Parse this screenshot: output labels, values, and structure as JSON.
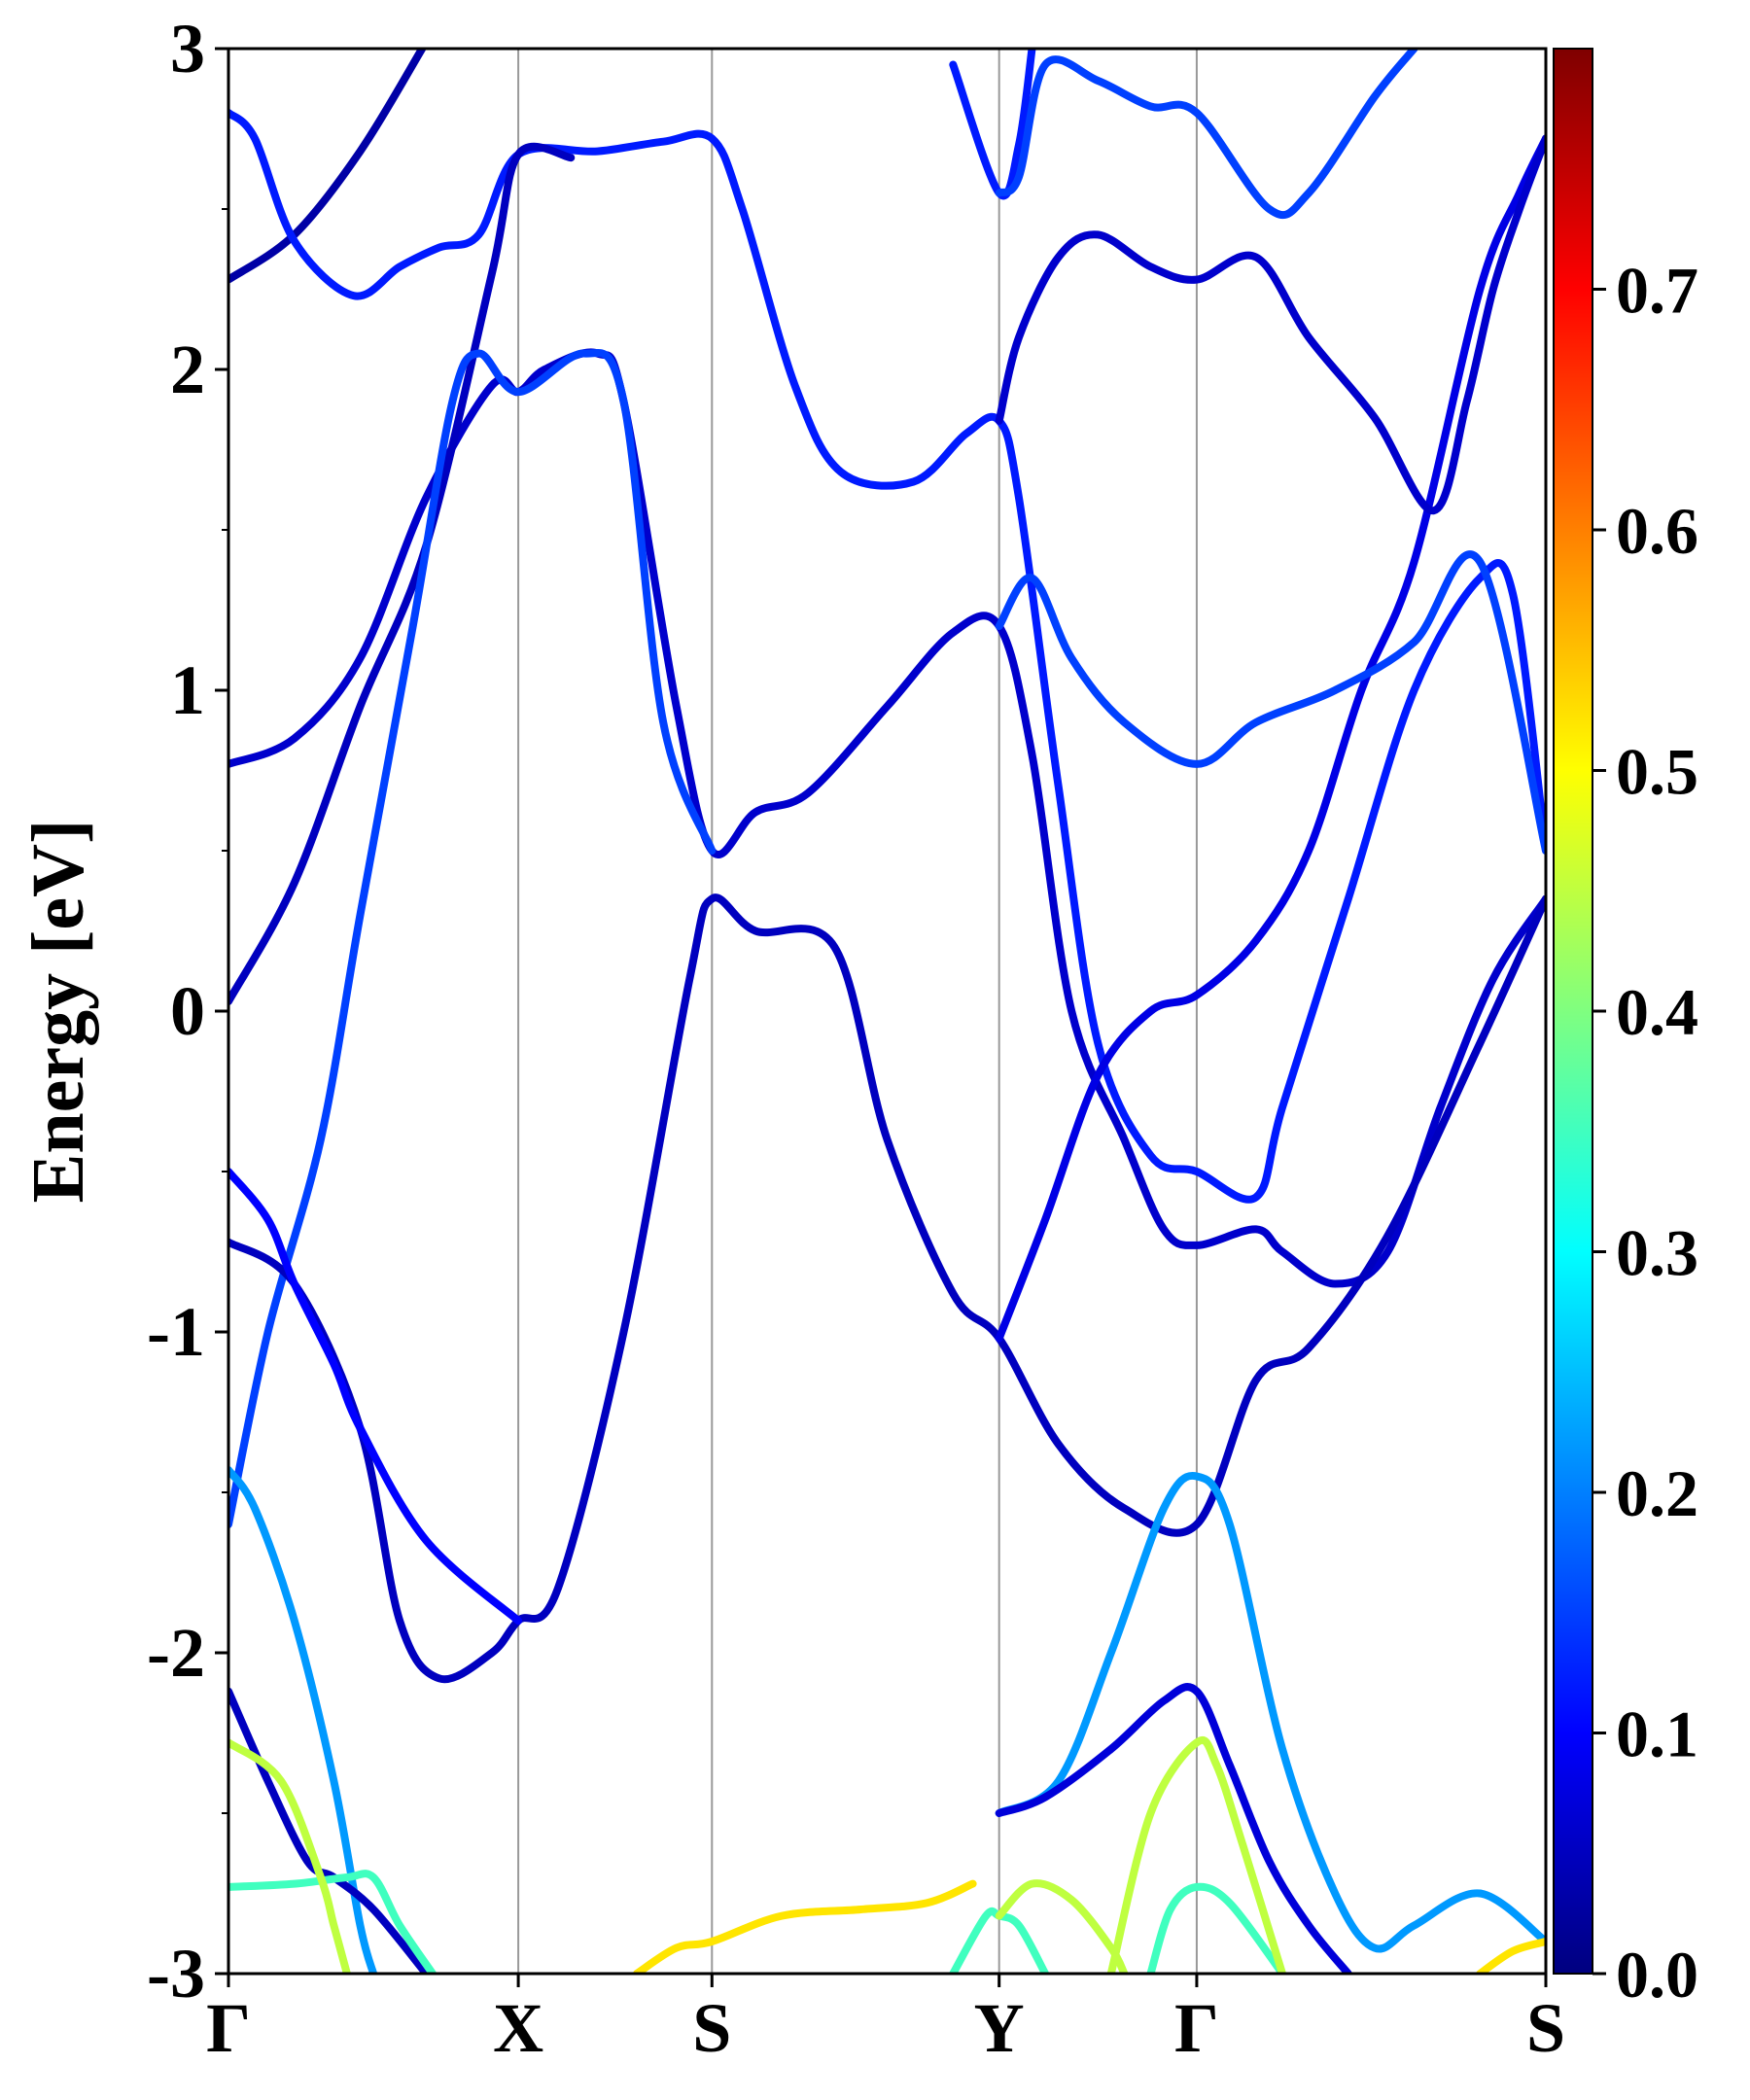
{
  "chart_data": {
    "type": "line",
    "title": "",
    "xlabel": "",
    "ylabel": "Energy [eV]",
    "ylim": [
      -3,
      3
    ],
    "yticks": [
      "-3",
      "-2",
      "-1",
      "0",
      "1",
      "2",
      "3"
    ],
    "x_kpoints": [
      {
        "label": "Γ",
        "x": 0.0
      },
      {
        "label": "X",
        "x": 0.22
      },
      {
        "label": "S",
        "x": 0.367
      },
      {
        "label": "Y",
        "x": 0.585
      },
      {
        "label": "Γ",
        "x": 0.735
      },
      {
        "label": "S",
        "x": 1.0
      }
    ],
    "colorbar": {
      "colormap": "jet",
      "min": 0.0,
      "max": 0.8,
      "ticks": [
        "0.0",
        "0.1",
        "0.2",
        "0.3",
        "0.4",
        "0.5",
        "0.6",
        "0.7"
      ]
    },
    "series": [
      {
        "weight": 0.03,
        "points": [
          [
            0,
            2.28
          ],
          [
            0.05,
            2.42
          ],
          [
            0.1,
            2.68
          ],
          [
            0.147,
            3.0
          ]
        ]
      },
      {
        "weight": 0.12,
        "points": [
          [
            0,
            2.8
          ],
          [
            0.02,
            2.72
          ],
          [
            0.05,
            2.4
          ],
          [
            0.095,
            2.23
          ],
          [
            0.13,
            2.32
          ],
          [
            0.16,
            2.38
          ],
          [
            0.19,
            2.42
          ],
          [
            0.22,
            2.67
          ],
          [
            0.28,
            2.68
          ],
          [
            0.33,
            2.71
          ],
          [
            0.367,
            2.72
          ],
          [
            0.39,
            2.5
          ],
          [
            0.43,
            1.95
          ],
          [
            0.465,
            1.68
          ],
          [
            0.52,
            1.65
          ],
          [
            0.56,
            1.8
          ],
          [
            0.585,
            1.84
          ],
          [
            0.6,
            1.6
          ],
          [
            0.63,
            0.7
          ],
          [
            0.66,
            -0.1
          ],
          [
            0.7,
            -0.45
          ],
          [
            0.735,
            -0.5
          ],
          [
            0.78,
            -0.58
          ],
          [
            0.8,
            -0.3
          ],
          [
            0.85,
            0.35
          ],
          [
            0.9,
            1.0
          ],
          [
            0.95,
            1.35
          ],
          [
            0.975,
            1.3
          ],
          [
            1.0,
            0.5
          ]
        ]
      },
      {
        "weight": 0.06,
        "points": [
          [
            0,
            0.77
          ],
          [
            0.05,
            0.85
          ],
          [
            0.1,
            1.1
          ],
          [
            0.15,
            1.6
          ],
          [
            0.2,
            1.95
          ],
          [
            0.22,
            1.93
          ],
          [
            0.24,
            2.0
          ],
          [
            0.28,
            2.05
          ],
          [
            0.3,
            1.9
          ],
          [
            0.34,
            0.95
          ],
          [
            0.367,
            0.5
          ],
          [
            0.4,
            0.62
          ],
          [
            0.44,
            0.68
          ],
          [
            0.5,
            0.95
          ],
          [
            0.55,
            1.18
          ],
          [
            0.585,
            1.2
          ],
          [
            0.61,
            0.8
          ],
          [
            0.64,
            0.0
          ],
          [
            0.68,
            -0.4
          ],
          [
            0.71,
            -0.68
          ],
          [
            0.735,
            -0.73
          ],
          [
            0.78,
            -0.68
          ],
          [
            0.8,
            -0.75
          ],
          [
            0.84,
            -0.85
          ],
          [
            0.88,
            -0.75
          ],
          [
            0.92,
            -0.3
          ],
          [
            0.96,
            0.1
          ],
          [
            1.0,
            0.35
          ]
        ]
      },
      {
        "weight": 0.05,
        "points": [
          [
            0,
            0.03
          ],
          [
            0.05,
            0.4
          ],
          [
            0.1,
            0.95
          ],
          [
            0.15,
            1.45
          ],
          [
            0.2,
            2.3
          ],
          [
            0.22,
            2.67
          ],
          [
            0.26,
            2.66
          ]
        ]
      },
      {
        "weight": 0.15,
        "points": [
          [
            0,
            -1.6
          ],
          [
            0.03,
            -1.0
          ],
          [
            0.07,
            -0.4
          ],
          [
            0.1,
            0.3
          ],
          [
            0.14,
            1.2
          ],
          [
            0.17,
            1.9
          ],
          [
            0.19,
            2.05
          ],
          [
            0.22,
            1.93
          ],
          [
            0.27,
            2.05
          ],
          [
            0.3,
            1.9
          ],
          [
            0.33,
            0.9
          ],
          [
            0.367,
            0.5
          ]
        ]
      },
      {
        "weight": 0.05,
        "points": [
          [
            0,
            -0.72
          ],
          [
            0.05,
            -0.85
          ],
          [
            0.1,
            -1.3
          ],
          [
            0.13,
            -1.9
          ],
          [
            0.16,
            -2.08
          ],
          [
            0.2,
            -2.0
          ],
          [
            0.22,
            -1.9
          ],
          [
            0.25,
            -1.8
          ],
          [
            0.3,
            -1.0
          ],
          [
            0.35,
            0.1
          ],
          [
            0.367,
            0.35
          ],
          [
            0.4,
            0.25
          ],
          [
            0.46,
            0.2
          ],
          [
            0.5,
            -0.4
          ],
          [
            0.55,
            -0.88
          ],
          [
            0.585,
            -1.02
          ],
          [
            0.63,
            -1.35
          ],
          [
            0.68,
            -1.55
          ],
          [
            0.735,
            -1.6
          ],
          [
            0.78,
            -1.15
          ],
          [
            0.82,
            -1.05
          ],
          [
            0.88,
            -0.7
          ],
          [
            0.95,
            -0.1
          ],
          [
            1.0,
            0.35
          ]
        ]
      },
      {
        "weight": 0.1,
        "points": [
          [
            0,
            -0.5
          ],
          [
            0.03,
            -0.65
          ],
          [
            0.05,
            -0.85
          ],
          [
            0.08,
            -1.1
          ],
          [
            0.1,
            -1.3
          ],
          [
            0.15,
            -1.65
          ],
          [
            0.22,
            -1.9
          ]
        ]
      },
      {
        "weight": 0.08,
        "points": [
          [
            0.585,
            -1.02
          ],
          [
            0.62,
            -0.65
          ],
          [
            0.66,
            -0.2
          ],
          [
            0.7,
            0.0
          ],
          [
            0.735,
            0.05
          ],
          [
            0.78,
            0.22
          ],
          [
            0.82,
            0.5
          ],
          [
            0.86,
            1.0
          ],
          [
            0.9,
            1.4
          ],
          [
            0.95,
            2.25
          ],
          [
            0.98,
            2.55
          ],
          [
            1.0,
            2.72
          ]
        ]
      },
      {
        "weight": 0.06,
        "points": [
          [
            0.585,
            1.84
          ],
          [
            0.6,
            2.1
          ],
          [
            0.63,
            2.35
          ],
          [
            0.66,
            2.42
          ],
          [
            0.7,
            2.32
          ],
          [
            0.735,
            2.28
          ],
          [
            0.78,
            2.35
          ],
          [
            0.82,
            2.1
          ],
          [
            0.87,
            1.85
          ],
          [
            0.915,
            1.56
          ],
          [
            0.94,
            1.9
          ],
          [
            0.96,
            2.25
          ],
          [
            0.98,
            2.5
          ],
          [
            1.0,
            2.72
          ]
        ]
      },
      {
        "weight": 0.12,
        "points": [
          [
            0.55,
            2.95
          ],
          [
            0.585,
            2.55
          ],
          [
            0.6,
            2.7
          ],
          [
            0.61,
            3.0
          ]
        ]
      },
      {
        "weight": 0.15,
        "points": [
          [
            0.585,
            2.55
          ],
          [
            0.6,
            2.6
          ],
          [
            0.62,
            2.95
          ],
          [
            0.66,
            2.9
          ],
          [
            0.7,
            2.82
          ],
          [
            0.735,
            2.8
          ],
          [
            0.79,
            2.5
          ],
          [
            0.82,
            2.55
          ],
          [
            0.87,
            2.85
          ],
          [
            0.9,
            3.0
          ]
        ]
      },
      {
        "weight": 0.15,
        "points": [
          [
            0.585,
            1.2
          ],
          [
            0.61,
            1.35
          ],
          [
            0.64,
            1.1
          ],
          [
            0.68,
            0.9
          ],
          [
            0.735,
            0.77
          ],
          [
            0.78,
            0.9
          ],
          [
            0.84,
            1.0
          ],
          [
            0.9,
            1.15
          ],
          [
            0.95,
            1.4
          ],
          [
            1.0,
            0.5
          ]
        ]
      },
      {
        "weight": 0.22,
        "points": [
          [
            0,
            -1.43
          ],
          [
            0.02,
            -1.55
          ],
          [
            0.05,
            -1.9
          ],
          [
            0.08,
            -2.4
          ],
          [
            0.1,
            -2.85
          ],
          [
            0.11,
            -3.0
          ]
        ]
      },
      {
        "weight": 0.22,
        "points": [
          [
            0.585,
            -2.5
          ],
          [
            0.63,
            -2.4
          ],
          [
            0.67,
            -2.0
          ],
          [
            0.71,
            -1.55
          ],
          [
            0.735,
            -1.45
          ],
          [
            0.76,
            -1.6
          ],
          [
            0.8,
            -2.3
          ],
          [
            0.84,
            -2.75
          ],
          [
            0.87,
            -2.92
          ],
          [
            0.9,
            -2.85
          ],
          [
            0.95,
            -2.75
          ],
          [
            1.0,
            -2.9
          ]
        ]
      },
      {
        "weight": 0.05,
        "points": [
          [
            0,
            -2.12
          ],
          [
            0.03,
            -2.4
          ],
          [
            0.06,
            -2.65
          ],
          [
            0.08,
            -2.7
          ],
          [
            0.11,
            -2.8
          ],
          [
            0.15,
            -3.0
          ]
        ]
      },
      {
        "weight": 0.07,
        "points": [
          [
            0.585,
            -2.5
          ],
          [
            0.62,
            -2.45
          ],
          [
            0.67,
            -2.3
          ],
          [
            0.71,
            -2.15
          ],
          [
            0.735,
            -2.12
          ],
          [
            0.76,
            -2.35
          ],
          [
            0.79,
            -2.65
          ],
          [
            0.82,
            -2.85
          ],
          [
            0.85,
            -3.0
          ]
        ]
      },
      {
        "weight": 0.35,
        "points": [
          [
            0,
            -2.73
          ],
          [
            0.05,
            -2.72
          ],
          [
            0.09,
            -2.7
          ],
          [
            0.11,
            -2.7
          ],
          [
            0.13,
            -2.85
          ],
          [
            0.155,
            -3.0
          ]
        ]
      },
      {
        "weight": 0.35,
        "points": [
          [
            0.55,
            -3.0
          ],
          [
            0.575,
            -2.82
          ],
          [
            0.585,
            -2.82
          ],
          [
            0.6,
            -2.85
          ],
          [
            0.62,
            -3.0
          ]
        ]
      },
      {
        "weight": 0.35,
        "points": [
          [
            0.7,
            -3.0
          ],
          [
            0.715,
            -2.8
          ],
          [
            0.735,
            -2.73
          ],
          [
            0.76,
            -2.78
          ],
          [
            0.8,
            -3.0
          ]
        ]
      },
      {
        "weight": 0.45,
        "points": [
          [
            0,
            -2.28
          ],
          [
            0.04,
            -2.4
          ],
          [
            0.07,
            -2.7
          ],
          [
            0.08,
            -2.85
          ],
          [
            0.09,
            -3.0
          ]
        ]
      },
      {
        "weight": 0.45,
        "points": [
          [
            0.585,
            -2.82
          ],
          [
            0.61,
            -2.72
          ],
          [
            0.64,
            -2.77
          ],
          [
            0.67,
            -2.92
          ],
          [
            0.68,
            -3.0
          ]
        ]
      },
      {
        "weight": 0.45,
        "points": [
          [
            0.67,
            -3.0
          ],
          [
            0.7,
            -2.5
          ],
          [
            0.735,
            -2.28
          ],
          [
            0.75,
            -2.35
          ],
          [
            0.77,
            -2.6
          ],
          [
            0.8,
            -3.0
          ]
        ]
      },
      {
        "weight": 0.52,
        "points": [
          [
            0.31,
            -3.0
          ],
          [
            0.34,
            -2.92
          ],
          [
            0.367,
            -2.9
          ],
          [
            0.42,
            -2.82
          ],
          [
            0.48,
            -2.8
          ],
          [
            0.53,
            -2.78
          ],
          [
            0.565,
            -2.72
          ]
        ]
      },
      {
        "weight": 0.52,
        "points": [
          [
            0.95,
            -3.0
          ],
          [
            0.975,
            -2.93
          ],
          [
            1.0,
            -2.9
          ]
        ]
      }
    ]
  }
}
